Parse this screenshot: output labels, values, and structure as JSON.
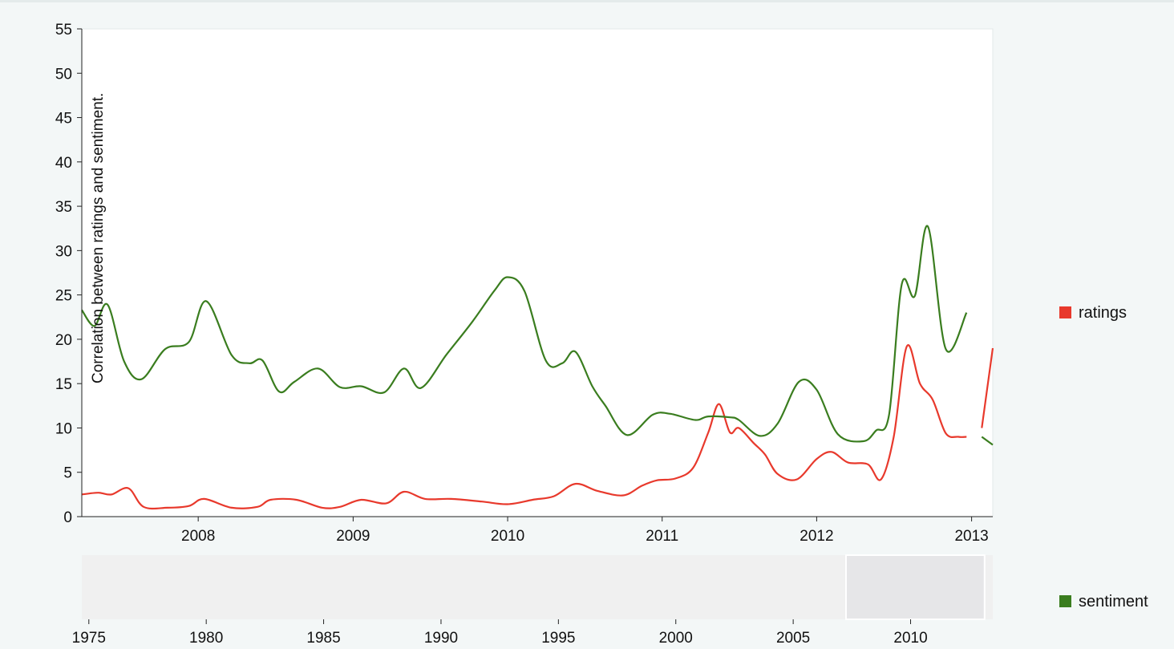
{
  "chart_data": {
    "type": "line",
    "ylabel": "Correlation between ratings and sentiment.",
    "xlabel": "",
    "ylim": [
      0,
      55
    ],
    "y_ticks": [
      0,
      5,
      10,
      15,
      20,
      25,
      30,
      35,
      40,
      45,
      50,
      55
    ],
    "xlim": [
      "2007-04-01",
      "2013-02-20"
    ],
    "x_ticks": [
      "2008",
      "2009",
      "2010",
      "2011",
      "2012",
      "2013"
    ],
    "grid": false,
    "legend_placement": "right",
    "series": [
      {
        "name": "ratings",
        "color": "#e8392c",
        "segments": [
          [
            [
              "2007-04-01",
              2.5
            ],
            [
              "2007-05-10",
              2.7
            ],
            [
              "2007-06-10",
              2.5
            ],
            [
              "2007-07-20",
              3.2
            ],
            [
              "2007-08-25",
              1.1
            ],
            [
              "2007-10-20",
              1.0
            ],
            [
              "2007-12-10",
              1.2
            ],
            [
              "2008-01-15",
              2.0
            ],
            [
              "2008-03-20",
              1.0
            ],
            [
              "2008-05-20",
              1.1
            ],
            [
              "2008-06-20",
              1.9
            ],
            [
              "2008-08-20",
              1.9
            ],
            [
              "2008-10-20",
              1.0
            ],
            [
              "2008-12-01",
              1.1
            ],
            [
              "2009-01-20",
              1.9
            ],
            [
              "2009-03-20",
              1.5
            ],
            [
              "2009-05-01",
              2.8
            ],
            [
              "2009-06-20",
              2.0
            ],
            [
              "2009-08-20",
              2.0
            ],
            [
              "2009-11-01",
              1.7
            ],
            [
              "2010-01-01",
              1.4
            ],
            [
              "2010-03-01",
              1.9
            ],
            [
              "2010-04-20",
              2.3
            ],
            [
              "2010-06-10",
              3.7
            ],
            [
              "2010-08-01",
              2.9
            ],
            [
              "2010-10-01",
              2.4
            ],
            [
              "2010-11-15",
              3.5
            ],
            [
              "2010-12-20",
              4.1
            ],
            [
              "2011-02-01",
              4.3
            ],
            [
              "2011-03-15",
              5.5
            ],
            [
              "2011-04-20",
              9.5
            ],
            [
              "2011-05-15",
              12.7
            ],
            [
              "2011-06-10",
              9.5
            ],
            [
              "2011-07-01",
              10.0
            ],
            [
              "2011-08-05",
              8.3
            ],
            [
              "2011-09-01",
              7.0
            ],
            [
              "2011-10-01",
              4.8
            ],
            [
              "2011-11-15",
              4.2
            ],
            [
              "2012-01-01",
              6.5
            ],
            [
              "2012-02-05",
              7.3
            ],
            [
              "2012-03-15",
              6.1
            ],
            [
              "2012-05-01",
              5.9
            ],
            [
              "2012-06-01",
              4.2
            ],
            [
              "2012-07-01",
              9.0
            ],
            [
              "2012-08-01",
              19.2
            ],
            [
              "2012-09-01",
              15.0
            ],
            [
              "2012-10-01",
              13.2
            ],
            [
              "2012-11-01",
              9.4
            ],
            [
              "2012-12-01",
              9.0
            ],
            [
              "2012-12-20",
              9.0
            ]
          ],
          [
            [
              "2013-01-25",
              10.0
            ],
            [
              "2013-02-20",
              19.0
            ]
          ]
        ]
      },
      {
        "name": "sentiment",
        "color": "#3a7d1f",
        "segments": [
          [
            [
              "2007-04-01",
              23.3
            ],
            [
              "2007-05-01",
              21.5
            ],
            [
              "2007-06-01",
              23.9
            ],
            [
              "2007-07-10",
              17.5
            ],
            [
              "2007-08-20",
              15.5
            ],
            [
              "2007-10-15",
              18.9
            ],
            [
              "2007-12-10",
              19.7
            ],
            [
              "2008-01-20",
              24.3
            ],
            [
              "2008-03-20",
              18.2
            ],
            [
              "2008-05-01",
              17.3
            ],
            [
              "2008-06-01",
              17.6
            ],
            [
              "2008-07-10",
              14.1
            ],
            [
              "2008-08-15",
              15.2
            ],
            [
              "2008-10-10",
              16.7
            ],
            [
              "2008-12-01",
              14.6
            ],
            [
              "2009-01-20",
              14.7
            ],
            [
              "2009-03-15",
              14.0
            ],
            [
              "2009-05-01",
              16.7
            ],
            [
              "2009-06-10",
              14.5
            ],
            [
              "2009-08-10",
              18.3
            ],
            [
              "2009-10-10",
              22.0
            ],
            [
              "2009-12-01",
              25.5
            ],
            [
              "2010-01-01",
              27.0
            ],
            [
              "2010-02-10",
              25.4
            ],
            [
              "2010-04-01",
              17.6
            ],
            [
              "2010-05-10",
              17.3
            ],
            [
              "2010-06-10",
              18.6
            ],
            [
              "2010-07-20",
              14.7
            ],
            [
              "2010-08-20",
              12.5
            ],
            [
              "2010-10-10",
              9.2
            ],
            [
              "2010-12-10",
              11.5
            ],
            [
              "2011-01-20",
              11.6
            ],
            [
              "2011-03-20",
              10.9
            ],
            [
              "2011-04-20",
              11.3
            ],
            [
              "2011-06-10",
              11.2
            ],
            [
              "2011-07-01",
              10.9
            ],
            [
              "2011-08-20",
              9.1
            ],
            [
              "2011-10-01",
              10.5
            ],
            [
              "2011-11-20",
              15.2
            ],
            [
              "2012-01-01",
              14.3
            ],
            [
              "2012-02-20",
              9.3
            ],
            [
              "2012-04-20",
              8.5
            ],
            [
              "2012-05-20",
              9.7
            ],
            [
              "2012-06-20",
              11.5
            ],
            [
              "2012-07-20",
              26.2
            ],
            [
              "2012-08-20",
              24.9
            ],
            [
              "2012-09-20",
              32.7
            ],
            [
              "2012-11-01",
              18.9
            ],
            [
              "2012-12-20",
              23.0
            ]
          ],
          [
            [
              "2013-01-25",
              9.0
            ],
            [
              "2013-02-20",
              8.1
            ]
          ]
        ]
      }
    ],
    "navigator": {
      "x_ticks": [
        "1975",
        "1980",
        "1985",
        "1990",
        "1995",
        "2000",
        "2005",
        "2010"
      ],
      "xlim": [
        1974.7,
        2013.5
      ],
      "selection": [
        2007.25,
        2013.15
      ]
    }
  }
}
